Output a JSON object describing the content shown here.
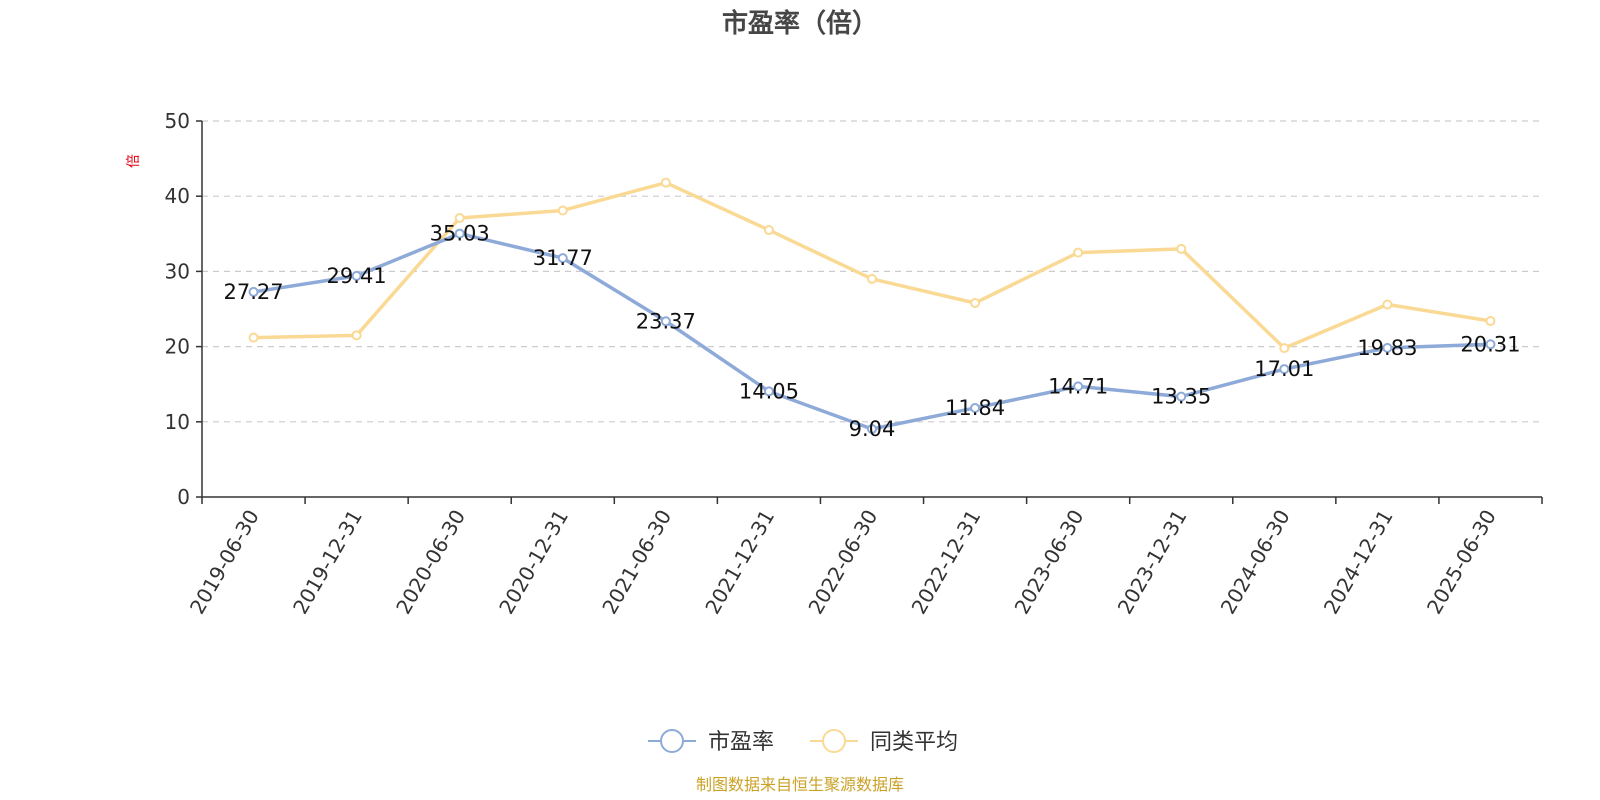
{
  "chart_data": {
    "type": "line",
    "title": "市盈率（倍）",
    "ylabel": "倍",
    "ylim": [
      0,
      50
    ],
    "yticks": [
      0,
      10,
      20,
      30,
      40,
      50
    ],
    "grid": true,
    "legend_position": "bottom-center",
    "categories": [
      "2019-06-30",
      "2019-12-31",
      "2020-06-30",
      "2020-12-31",
      "2021-06-30",
      "2021-12-31",
      "2022-06-30",
      "2022-12-31",
      "2023-06-30",
      "2023-12-31",
      "2024-06-30",
      "2024-12-31",
      "2025-06-30"
    ],
    "series": [
      {
        "name": "市盈率",
        "color": "#8eaad8",
        "values": [
          27.27,
          29.41,
          35.03,
          31.77,
          23.37,
          14.05,
          9.04,
          11.84,
          14.71,
          13.35,
          17.01,
          19.83,
          20.31
        ],
        "labels": [
          "27.27",
          "29.41",
          "35.03",
          "31.77",
          "23.37",
          "14.05",
          "9.04",
          "11.84",
          "14.71",
          "13.35",
          "17.01",
          "19.83",
          "20.31"
        ]
      },
      {
        "name": "同类平均",
        "color": "#fad994",
        "values": [
          21.2,
          21.5,
          37.1,
          38.1,
          41.8,
          35.5,
          29.0,
          25.8,
          32.5,
          33.0,
          19.8,
          25.6,
          23.4
        ]
      }
    ],
    "source": "制图数据来自恒生聚源数据库"
  }
}
